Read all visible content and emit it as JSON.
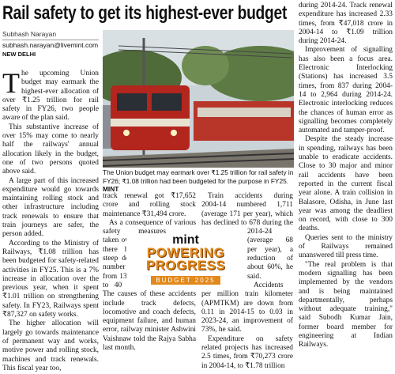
{
  "headline": "Rail safety to get its highest-ever budget",
  "byline": {
    "name": "Subhash Narayan",
    "email": "subhash.narayan@livemint.com",
    "dateline": "NEW DELHI"
  },
  "photo": {
    "caption": "The Union budget may earmark over ₹1.25 trillion for rail safety in FY26; ₹1.08 trillion had been budgeted for the purpose in FY25.",
    "credit": "MINT"
  },
  "logo": {
    "brand": "mint",
    "line1": "POWERING",
    "line2": "PROGRESS",
    "edition": "BUDGET 2025"
  },
  "columns": [
    {
      "paragraphs": [
        "The upcoming Union budget may earmark the highest-ever allocation of over ₹1.25 trillion for rail safety in FY26, two people aware of the plan said.",
        "This substantive increase of over 15% may come to nearly half the railways' annual allocation likely in the budget, one of two persons quoted above said.",
        "A large part of this increased expenditure would go towards maintaining rolling stock and other infrastructure including track renewals to ensure that train journeys are safer, the person added.",
        "According to the Ministry of Railways, ₹1.08 trillion has been budgeted for safety-related activities in FY25. This is a 7% increase in allocation over the previous year, when it spent ₹1.01 trillion on strengthening safety. In FY23, Railways spent ₹87,327 on safety works.",
        "The higher allocation will largely go towards maintenance of permanent way and works, motive power and rolling stock, machines and track renewals. This fiscal year too,"
      ]
    },
    {
      "paragraphs": [
        "track renewal got ₹17,652 crore and rolling stock maintenance ₹31,494 crore.",
        "As a consequence of various safety measures taken over the years, there has been a steep decline in the number of accidents, from 135 in 2014-15 to 40 in 2023-24. The causes of these accidents include track defects, locomotive and coach defects, equipment failure, and human error, railway minister Ashwini Vaishnaw told the Rajya Sabha last month."
      ]
    },
    {
      "paragraphs": [
        "Train accidents during 2004-14 numbered 1,711 (average 171 per year), which has declined to 678 during the 2014-24 (average 68 per year), a reduction of about 60%, he said.",
        "Accidents per million train kilometer (APMTKM) are down from 0.11 in 2014-15 to 0.03 in 2023-24, an improvement of 73%, he said.",
        "Expenditure on safety related projects has increased 2.5 times, from ₹70,273 crore in 2004-14, to ₹1.78 trillion"
      ]
    },
    {
      "paragraphs": [
        "during 2014-24. Track renewal expenditure has increased 2.33 times, from ₹47,018 crore in 2004-14 to ₹1.09 trillion during 2014-24.",
        "Improvement of signalling has also been a focus area. Electronic Interlocking (Stations) has increased 3.5 times, from 837 during 2004-14 to 2,964 during 2014-24. Electronic interlocking reduces the chances of human error as signalling becomes completely automated and tamper-proof.",
        "Despite the steady increase in spending, railways has been unable to eradicate accidents. Close to 30 major and minor rail accidents have been reported in the current fiscal year alone. A train collision in Balasore, Odisha, in June last year was among the deadliest on record, with close to 300 deaths.",
        "Queries sent to the ministry of Railways remained unanswered till press time.",
        "\"The real problem is that modern signalling has been implemented by the vendors and is being maintained departmentally, perhaps without adequate training,\" said Subodh Kumar Jain, former board member for engineering at Indian Railways."
      ]
    }
  ]
}
